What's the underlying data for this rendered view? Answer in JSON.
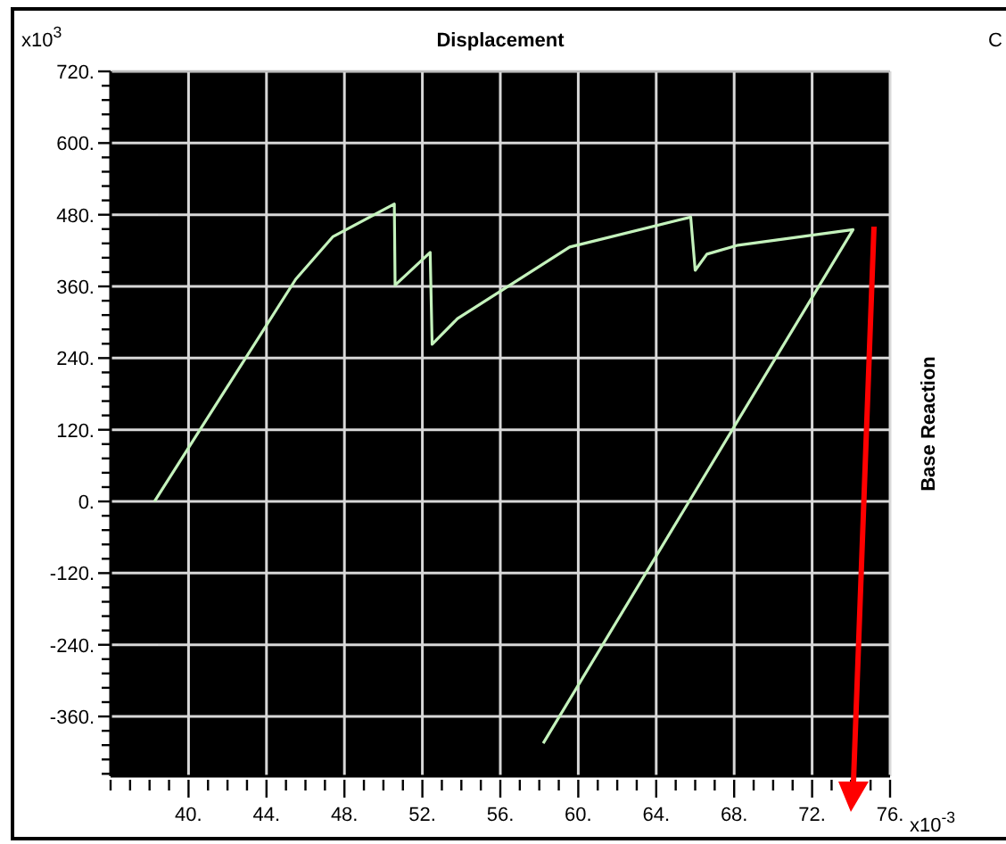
{
  "chart_data": {
    "type": "line",
    "title": "Displacement",
    "ylabel": "Base Reaction",
    "annotations": [
      "x10$^{3}$",
      "x10$^{-3}$",
      "C"
    ],
    "x": [
      38.25,
      45.5,
      47.4,
      50.56,
      50.6,
      52.4,
      52.5,
      53.8,
      59.56,
      65.77,
      66.0,
      66.6,
      68.2,
      74.1,
      58.2
    ],
    "series": [
      {
        "color": "#c4f2bc",
        "values": [
          0,
          372,
          443,
          498,
          362,
          417,
          263,
          306,
          426,
          476,
          387,
          414,
          429,
          455,
          -405
        ]
      }
    ],
    "xlim": [
      36,
      76
    ],
    "ylim": [
      -460,
      720
    ],
    "xticks": [
      {
        "value": 36,
        "label": null
      },
      {
        "value": 37,
        "label": null
      },
      {
        "value": 38,
        "label": null
      },
      {
        "value": 39,
        "label": null
      },
      {
        "value": 40,
        "label": "40."
      },
      {
        "value": 41,
        "label": null
      },
      {
        "value": 42,
        "label": null
      },
      {
        "value": 43,
        "label": null
      },
      {
        "value": 44,
        "label": "44."
      },
      {
        "value": 45,
        "label": null
      },
      {
        "value": 46,
        "label": null
      },
      {
        "value": 47,
        "label": null
      },
      {
        "value": 48,
        "label": "48."
      },
      {
        "value": 49,
        "label": null
      },
      {
        "value": 50,
        "label": null
      },
      {
        "value": 51,
        "label": null
      },
      {
        "value": 52,
        "label": "52."
      },
      {
        "value": 53,
        "label": null
      },
      {
        "value": 54,
        "label": null
      },
      {
        "value": 55,
        "label": null
      },
      {
        "value": 56,
        "label": "56."
      },
      {
        "value": 57,
        "label": null
      },
      {
        "value": 58,
        "label": null
      },
      {
        "value": 59,
        "label": null
      },
      {
        "value": 60,
        "label": "60."
      },
      {
        "value": 61,
        "label": null
      },
      {
        "value": 62,
        "label": null
      },
      {
        "value": 63,
        "label": null
      },
      {
        "value": 64,
        "label": "64."
      },
      {
        "value": 65,
        "label": null
      },
      {
        "value": 66,
        "label": null
      },
      {
        "value": 67,
        "label": null
      },
      {
        "value": 68,
        "label": "68."
      },
      {
        "value": 69,
        "label": null
      },
      {
        "value": 70,
        "label": null
      },
      {
        "value": 71,
        "label": null
      },
      {
        "value": 72,
        "label": "72."
      },
      {
        "value": 73,
        "label": null
      },
      {
        "value": 74,
        "label": null
      },
      {
        "value": 75,
        "label": null
      },
      {
        "value": 76,
        "label": "76."
      }
    ],
    "yticks": [
      {
        "value": -456,
        "label": null
      },
      {
        "value": -432,
        "label": null
      },
      {
        "value": -408,
        "label": null
      },
      {
        "value": -384,
        "label": null
      },
      {
        "value": -360,
        "label": "-360."
      },
      {
        "value": -336,
        "label": null
      },
      {
        "value": -312,
        "label": null
      },
      {
        "value": -288,
        "label": null
      },
      {
        "value": -264,
        "label": null
      },
      {
        "value": -240,
        "label": "-240."
      },
      {
        "value": -216,
        "label": null
      },
      {
        "value": -192,
        "label": null
      },
      {
        "value": -168,
        "label": null
      },
      {
        "value": -144,
        "label": null
      },
      {
        "value": -120,
        "label": "-120."
      },
      {
        "value": -96,
        "label": null
      },
      {
        "value": -72,
        "label": null
      },
      {
        "value": -48,
        "label": null
      },
      {
        "value": -24,
        "label": null
      },
      {
        "value": 0,
        "label": "0."
      },
      {
        "value": 24,
        "label": null
      },
      {
        "value": 48,
        "label": null
      },
      {
        "value": 72,
        "label": null
      },
      {
        "value": 96,
        "label": null
      },
      {
        "value": 120,
        "label": "120."
      },
      {
        "value": 144,
        "label": null
      },
      {
        "value": 168,
        "label": null
      },
      {
        "value": 192,
        "label": null
      },
      {
        "value": 216,
        "label": null
      },
      {
        "value": 240,
        "label": "240."
      },
      {
        "value": 264,
        "label": null
      },
      {
        "value": 288,
        "label": null
      },
      {
        "value": 312,
        "label": null
      },
      {
        "value": 336,
        "label": null
      },
      {
        "value": 360,
        "label": "360."
      },
      {
        "value": 384,
        "label": null
      },
      {
        "value": 408,
        "label": null
      },
      {
        "value": 432,
        "label": null
      },
      {
        "value": 456,
        "label": null
      },
      {
        "value": 480,
        "label": "480."
      },
      {
        "value": 504,
        "label": null
      },
      {
        "value": 528,
        "label": null
      },
      {
        "value": 552,
        "label": null
      },
      {
        "value": 576,
        "label": null
      },
      {
        "value": 600,
        "label": "600."
      },
      {
        "value": 624,
        "label": null
      },
      {
        "value": 648,
        "label": null
      },
      {
        "value": 672,
        "label": null
      },
      {
        "value": 696,
        "label": null
      },
      {
        "value": 720,
        "label": "720."
      }
    ],
    "grid": true,
    "marker": "none",
    "line_style": "solid"
  }
}
